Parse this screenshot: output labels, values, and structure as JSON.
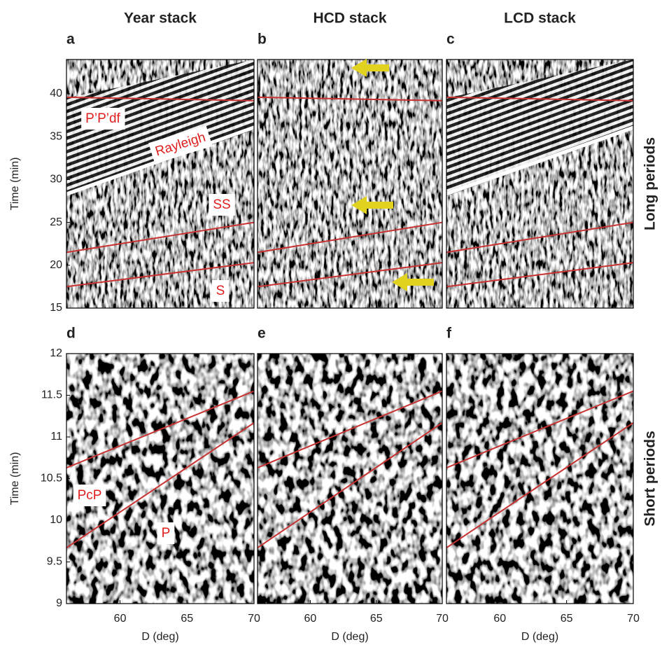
{
  "chart_data": [
    {
      "type": "line",
      "title": "Year stack",
      "panel_label": "a",
      "ylabel": "Time (min)",
      "xlim": [
        56,
        70
      ],
      "ylim": [
        15,
        44
      ],
      "yticks": [
        15,
        20,
        25,
        30,
        35,
        40
      ],
      "color": "#c83232",
      "lines": [
        {
          "x": [
            56,
            70
          ],
          "values": [
            39.6,
            39.2
          ]
        },
        {
          "x": [
            56,
            70
          ],
          "values": [
            21.5,
            25
          ]
        },
        {
          "x": [
            56,
            70
          ],
          "values": [
            17.5,
            20.3
          ]
        }
      ],
      "annotations": [
        "P’P’df",
        "Rayleigh",
        "SS",
        "S"
      ]
    },
    {
      "type": "line",
      "title": "HCD stack",
      "panel_label": "b",
      "xlim": [
        56,
        70
      ],
      "ylim": [
        15,
        44
      ],
      "color": "#c83232",
      "lines": [
        {
          "x": [
            56,
            70
          ],
          "values": [
            39.6,
            39.2
          ]
        },
        {
          "x": [
            56,
            70
          ],
          "values": [
            21.5,
            25
          ]
        },
        {
          "x": [
            56,
            70
          ],
          "values": [
            17.5,
            20.3
          ]
        }
      ]
    },
    {
      "type": "line",
      "title": "LCD stack",
      "panel_label": "c",
      "side_label": "Long periods",
      "xlim": [
        56,
        70
      ],
      "ylim": [
        15,
        44
      ],
      "color": "#c83232",
      "lines": [
        {
          "x": [
            56,
            70
          ],
          "values": [
            39.6,
            39.2
          ]
        },
        {
          "x": [
            56,
            70
          ],
          "values": [
            21.5,
            25
          ]
        },
        {
          "x": [
            56,
            70
          ],
          "values": [
            17.5,
            20.3
          ]
        }
      ]
    },
    {
      "type": "line",
      "panel_label": "d",
      "ylabel": "Time (min)",
      "xlabel": "D (deg)",
      "xlim": [
        56,
        70
      ],
      "ylim": [
        9,
        12
      ],
      "xticks": [
        60,
        65,
        70
      ],
      "yticks": [
        9,
        9.5,
        10,
        10.5,
        11,
        11.5,
        12
      ],
      "color": "#c83232",
      "lines": [
        {
          "x": [
            56,
            70
          ],
          "values": [
            10.63,
            11.55
          ]
        },
        {
          "x": [
            56,
            70
          ],
          "values": [
            9.67,
            11.17
          ]
        }
      ],
      "annotations": [
        "PcP",
        "P"
      ]
    },
    {
      "type": "line",
      "panel_label": "e",
      "xlabel": "D (deg)",
      "xlim": [
        56,
        70
      ],
      "ylim": [
        9,
        12
      ],
      "xticks": [
        60,
        65,
        70
      ],
      "color": "#c83232",
      "lines": [
        {
          "x": [
            56,
            70
          ],
          "values": [
            10.63,
            11.55
          ]
        },
        {
          "x": [
            56,
            70
          ],
          "values": [
            9.67,
            11.17
          ]
        }
      ]
    },
    {
      "type": "line",
      "panel_label": "f",
      "xlabel": "D (deg)",
      "side_label": "Short periods",
      "xlim": [
        56,
        70
      ],
      "ylim": [
        9,
        12
      ],
      "xticks": [
        60,
        65,
        70
      ],
      "color": "#c83232",
      "lines": [
        {
          "x": [
            56,
            70
          ],
          "values": [
            10.63,
            11.55
          ]
        },
        {
          "x": [
            56,
            70
          ],
          "values": [
            9.67,
            11.17
          ]
        }
      ]
    }
  ]
}
